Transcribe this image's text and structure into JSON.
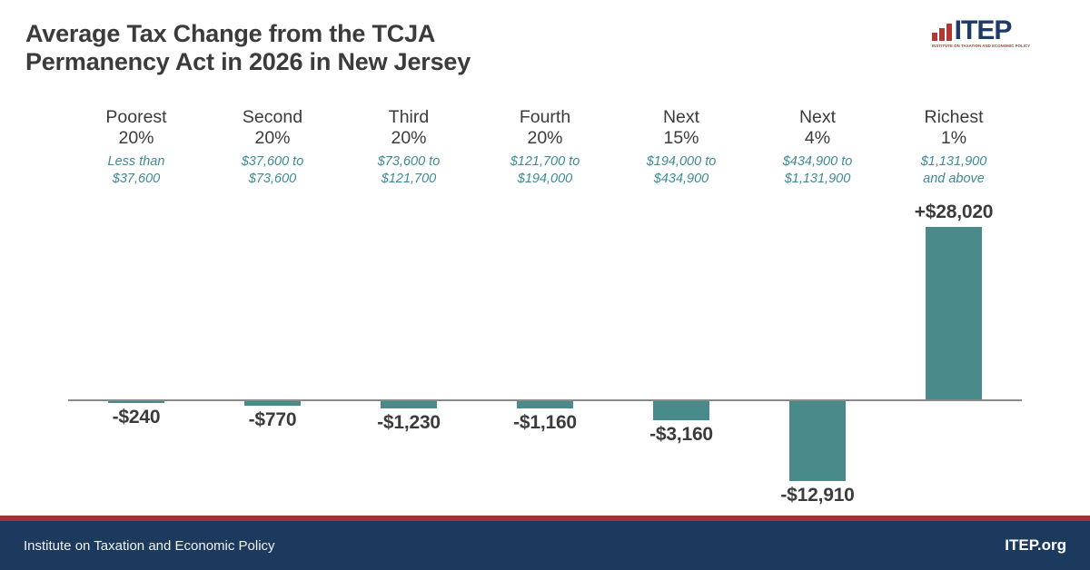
{
  "header": {
    "title_lines": [
      "Average Tax Change from the TCJA",
      "Permanency Act in 2026 in New Jersey"
    ],
    "logo": {
      "name": "ITEP",
      "tagline": "INSTITUTE ON TAXATION AND ECONOMIC POLICY"
    }
  },
  "chart_data": {
    "type": "bar",
    "title": "Average Tax Change from the TCJA Permanency Act in 2026 in New Jersey",
    "categories": [
      "Poorest\n20%",
      "Second\n20%",
      "Third\n20%",
      "Fourth\n20%",
      "Next\n15%",
      "Next\n4%",
      "Richest\n1%"
    ],
    "income_ranges": [
      "Less than\n$37,600",
      "$37,600 to\n$73,600",
      "$73,600 to\n$121,700",
      "$121,700 to\n$194,000",
      "$194,000 to\n$434,900",
      "$434,900 to\n$1,131,900",
      "$1,131,900\nand above"
    ],
    "values": [
      -240,
      -770,
      -1230,
      -1160,
      -3160,
      -12910,
      28020
    ],
    "value_labels": [
      "-$240",
      "-$770",
      "-$1,230",
      "-$1,160",
      "-$3,160",
      "-$12,910",
      "+$28,020"
    ],
    "ylim": [
      -14000,
      29000
    ],
    "baseline": 0,
    "grid": false,
    "legend": false,
    "bar_color": "#488b8a",
    "range_text_color": "#3e8a94",
    "label_color": "#3b3b3b",
    "axis_color": "#8a8a8a"
  },
  "footer": {
    "left_text": "Institute on Taxation and Economic Policy",
    "right_text": "ITEP.org",
    "background_color": "#1c3a5e",
    "accent_line_color": "#a13430",
    "logo_navy": "#1e3a68",
    "logo_red": "#ae3a33"
  }
}
